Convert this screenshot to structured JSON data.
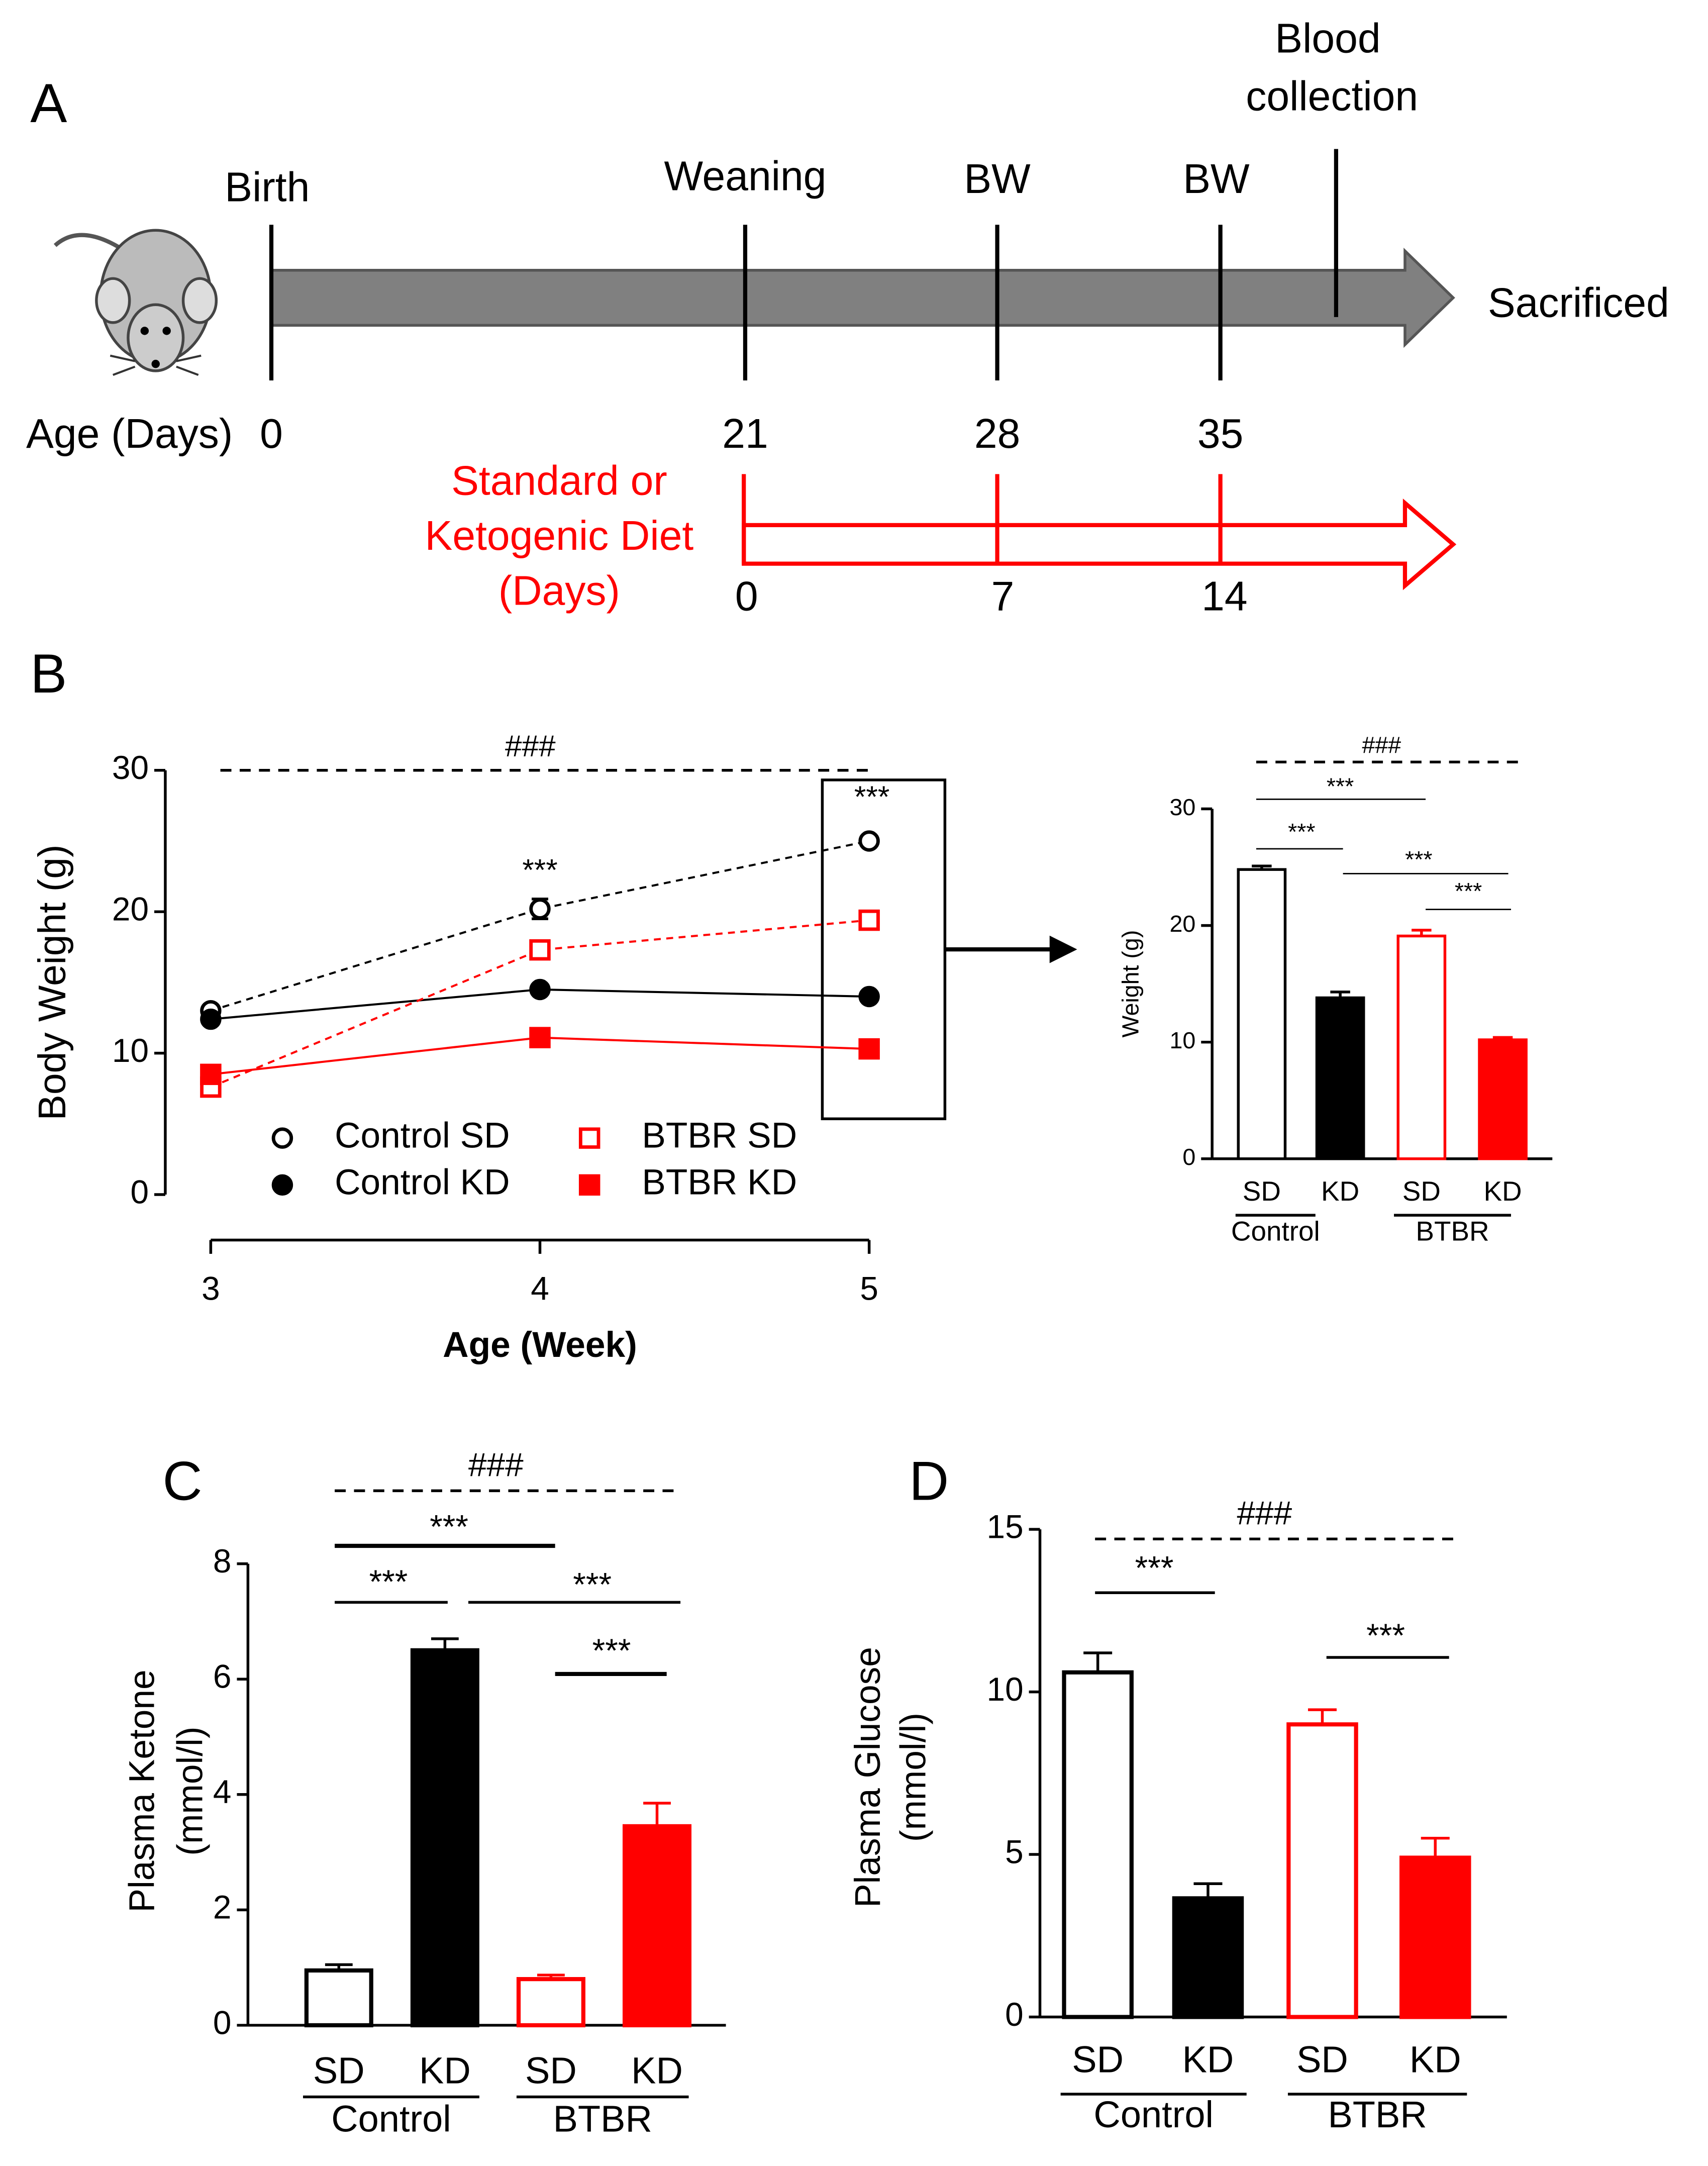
{
  "timeline": {
    "panel": "A",
    "birth": "Birth",
    "weaning": "Weaning",
    "bw": [
      "BW",
      "BW"
    ],
    "blood_collection": [
      "Blood",
      "collection"
    ],
    "end": "Sacrificed",
    "age_label": "Age (Days)",
    "ages": [
      0,
      21,
      28,
      35
    ],
    "diet_label": [
      "Standard or",
      "Ketogenic Diet",
      "(Days)"
    ],
    "diet_days": [
      0,
      7,
      14
    ]
  },
  "chart_data": [
    {
      "type": "line",
      "panel": "B",
      "ylabel": "Body Weight (g)",
      "xlabel": "Age (Week)",
      "x": [
        3,
        4,
        5
      ],
      "xlim": [
        3,
        5
      ],
      "xticks": [
        3,
        4,
        5
      ],
      "ylim": [
        0,
        30
      ],
      "yticks": [
        0,
        10,
        20,
        30
      ],
      "series": [
        {
          "name": "Control SD",
          "color": "#000000",
          "marker": "circle",
          "filled": false,
          "dashed": true,
          "values": [
            13.0,
            20.2,
            25.0
          ],
          "errors": [
            0.3,
            0.7,
            0.3
          ]
        },
        {
          "name": "Control KD",
          "color": "#000000",
          "marker": "circle",
          "filled": true,
          "dashed": false,
          "values": [
            12.4,
            14.5,
            14.0
          ]
        },
        {
          "name": "BTBR SD",
          "color": "#ff0000",
          "marker": "square",
          "filled": false,
          "dashed": true,
          "values": [
            7.6,
            17.3,
            19.4
          ]
        },
        {
          "name": "BTBR KD",
          "color": "#ff0000",
          "marker": "square",
          "filled": true,
          "dashed": false,
          "values": [
            8.5,
            11.1,
            10.3
          ]
        }
      ],
      "annotations": [
        "###",
        "***",
        "***"
      ]
    },
    {
      "type": "bar",
      "ylabel": [
        "Weight (g)"
      ],
      "categories": [
        "SD",
        "KD",
        "SD",
        "KD"
      ],
      "groups": [
        "Control",
        "BTBR"
      ],
      "values": [
        24.8,
        13.8,
        19.1,
        10.2
      ],
      "errors": [
        0.3,
        0.5,
        0.5,
        0.2
      ],
      "colors": [
        "#000000",
        "#000000",
        "#ff0000",
        "#ff0000"
      ],
      "filled": [
        false,
        true,
        false,
        true
      ],
      "ylim": [
        0,
        30
      ],
      "yticks": [
        0,
        10,
        20,
        30
      ],
      "annotations": [
        "###",
        "***",
        "***",
        "***",
        "***"
      ]
    },
    {
      "type": "bar",
      "panel": "C",
      "ylabel": [
        "Plasma Ketone",
        "(mmol/l)"
      ],
      "categories": [
        "SD",
        "KD",
        "SD",
        "KD"
      ],
      "groups": [
        "Control",
        "BTBR"
      ],
      "values": [
        0.95,
        6.5,
        0.8,
        3.45
      ],
      "errors": [
        0.1,
        0.2,
        0.07,
        0.4
      ],
      "colors": [
        "#000000",
        "#000000",
        "#ff0000",
        "#ff0000"
      ],
      "filled": [
        false,
        true,
        false,
        true
      ],
      "ylim": [
        0,
        8
      ],
      "yticks": [
        0,
        2,
        4,
        6,
        8
      ],
      "annotations": [
        "###",
        "***",
        "***",
        "***",
        "***"
      ]
    },
    {
      "type": "bar",
      "panel": "D",
      "ylabel": [
        "Plasma Glucose",
        "(mmol/l)"
      ],
      "categories": [
        "SD",
        "KD",
        "SD",
        "KD"
      ],
      "groups": [
        "Control",
        "BTBR"
      ],
      "values": [
        10.6,
        3.65,
        9.0,
        4.9
      ],
      "errors": [
        0.6,
        0.45,
        0.45,
        0.6
      ],
      "colors": [
        "#000000",
        "#000000",
        "#ff0000",
        "#ff0000"
      ],
      "filled": [
        false,
        true,
        false,
        true
      ],
      "ylim": [
        0,
        15
      ],
      "yticks": [
        0,
        5,
        10,
        15
      ],
      "annotations": [
        "###",
        "***",
        "***"
      ]
    }
  ]
}
